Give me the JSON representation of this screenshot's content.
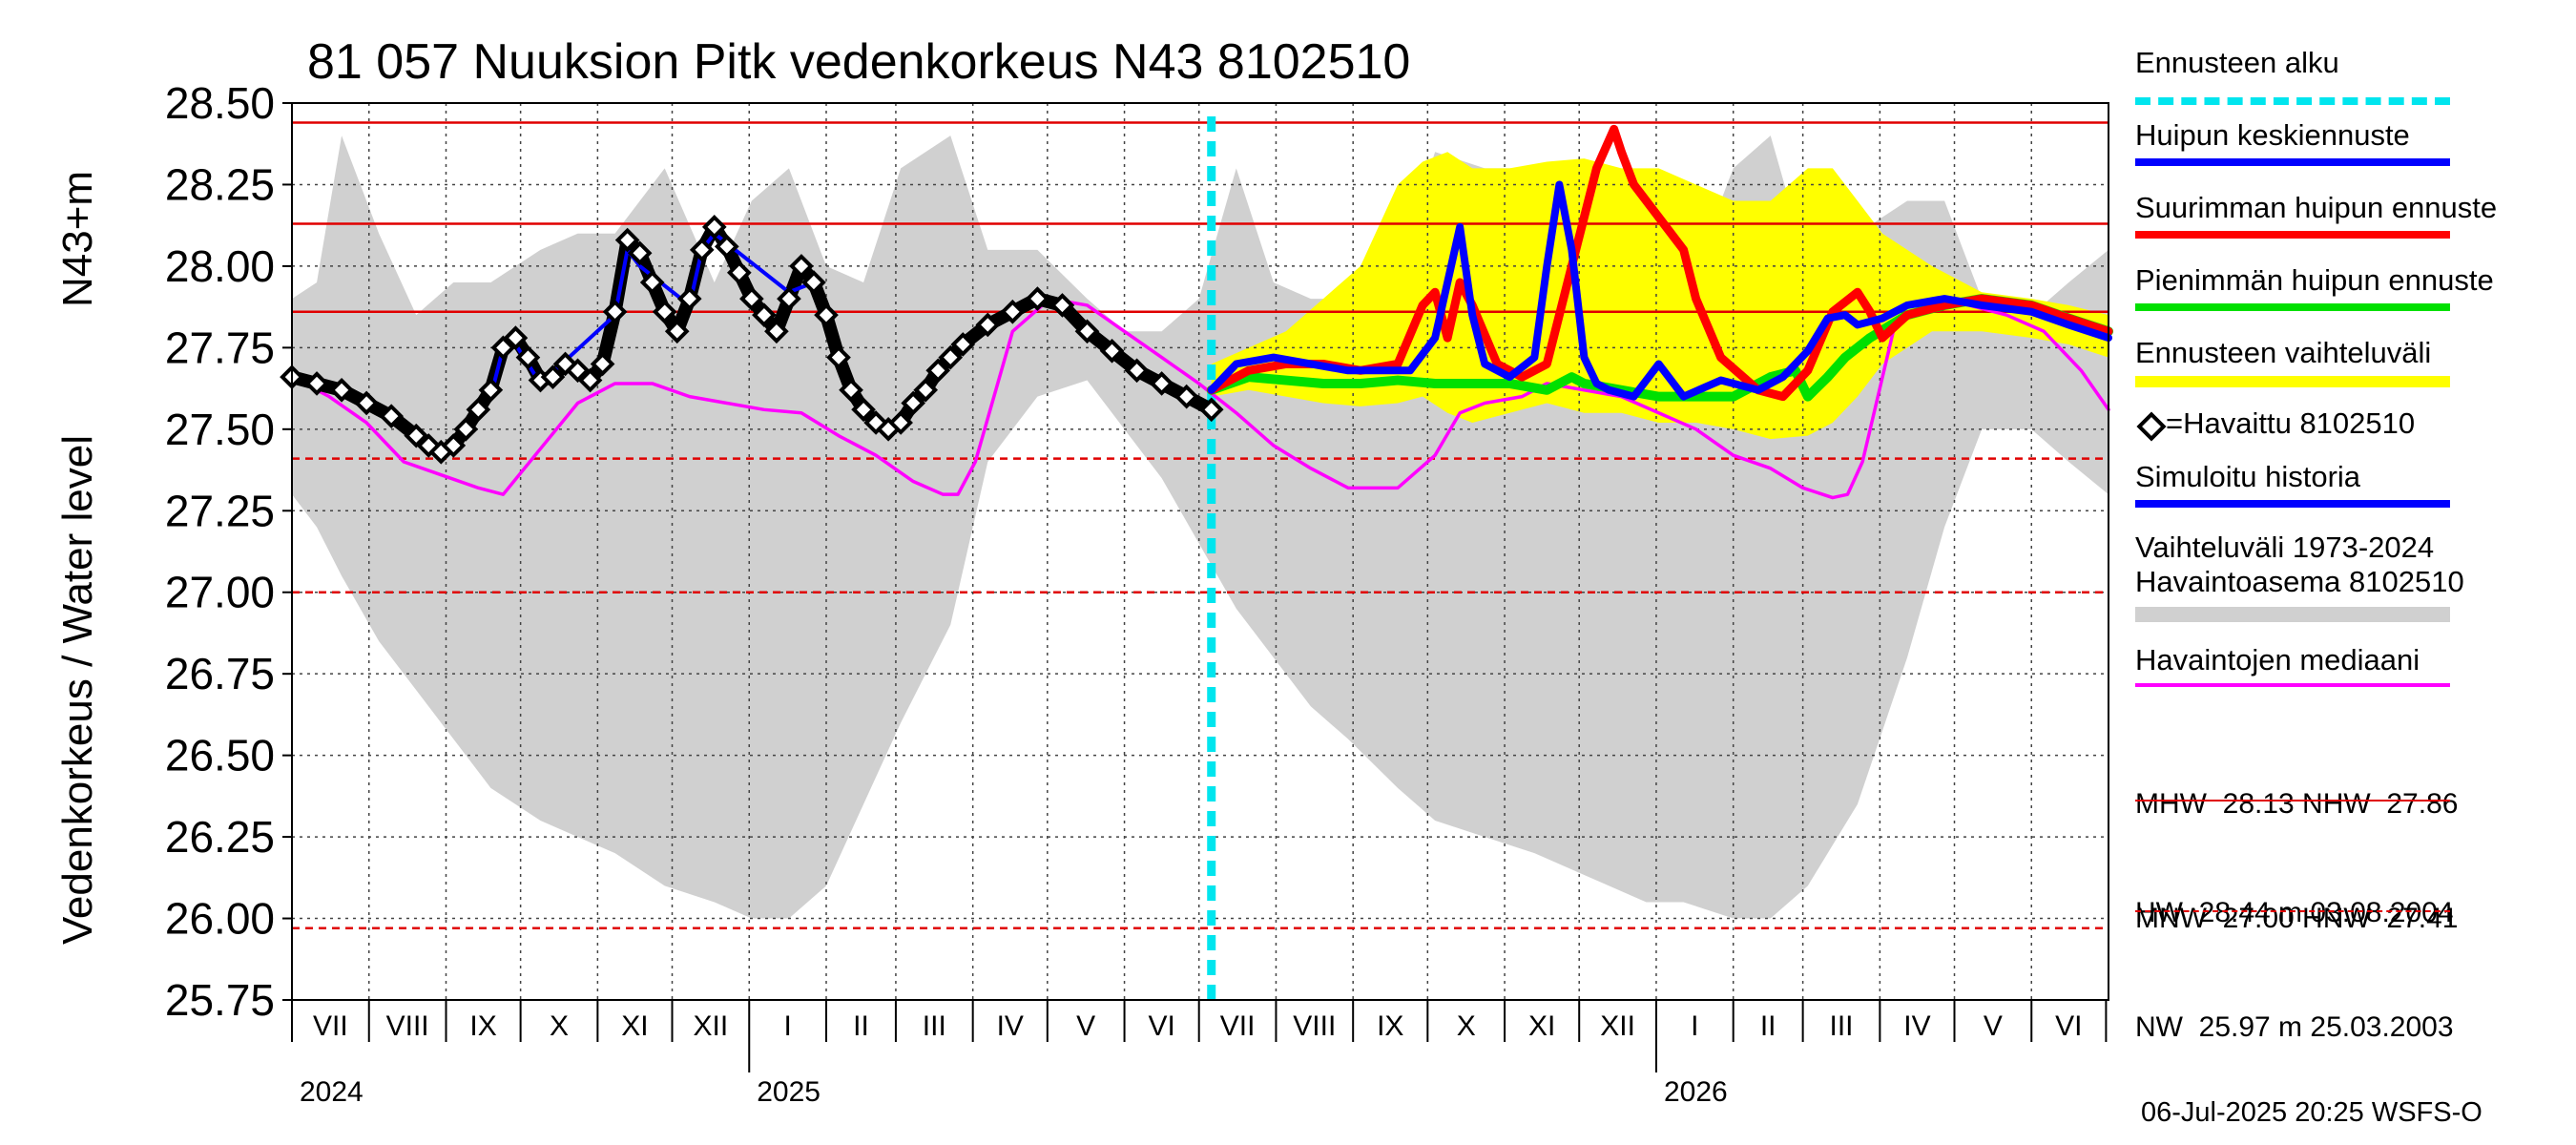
{
  "chart_data": {
    "type": "line",
    "title": "81 057 Nuuksion Pitk vedenkorkeus N43 8102510",
    "ylabel_main": "Vedenkorkeus / Water level",
    "ylabel_unit": "N43+m",
    "ylim": [
      25.75,
      28.5
    ],
    "yticks": [
      "28.50",
      "28.25",
      "28.00",
      "27.75",
      "27.50",
      "27.25",
      "27.00",
      "26.75",
      "26.50",
      "26.25",
      "26.00",
      "25.75"
    ],
    "xrange_days": [
      0,
      731
    ],
    "month_labels": [
      "VII",
      "VIII",
      "IX",
      "X",
      "XI",
      "XII",
      "I",
      "II",
      "III",
      "IV",
      "V",
      "VI",
      "VII",
      "VIII",
      "IX",
      "X",
      "XI",
      "XII",
      "I",
      "II",
      "III",
      "IV",
      "V",
      "VI"
    ],
    "year_labels": [
      "2024",
      "2025",
      "2026"
    ],
    "forecast_start_day": 370,
    "reference_lines": [
      {
        "name": "HW",
        "value": 28.44,
        "color": "#e00000",
        "style": "solid"
      },
      {
        "name": "MHW",
        "value": 28.13,
        "color": "#e00000",
        "style": "solid"
      },
      {
        "name": "NHW",
        "value": 27.86,
        "color": "#e00000",
        "style": "solid"
      },
      {
        "name": "HNW",
        "value": 27.41,
        "color": "#e00000",
        "style": "dashed"
      },
      {
        "name": "MNW",
        "value": 27.0,
        "color": "#e00000",
        "style": "dashed"
      },
      {
        "name": "NW",
        "value": 25.97,
        "color": "#e00000",
        "style": "dashed"
      }
    ],
    "historical_band": {
      "x": [
        0,
        10,
        20,
        35,
        50,
        65,
        80,
        100,
        115,
        130,
        150,
        170,
        185,
        200,
        215,
        230,
        245,
        265,
        280,
        300,
        320,
        335,
        350,
        365,
        380,
        395,
        410,
        425,
        445,
        460,
        480,
        500,
        515,
        530,
        545,
        560,
        580,
        595,
        610,
        630,
        650,
        665,
        680,
        700,
        715,
        731
      ],
      "upper": [
        27.9,
        27.95,
        28.4,
        28.1,
        27.85,
        27.95,
        27.95,
        28.05,
        28.1,
        28.1,
        28.3,
        27.95,
        28.2,
        28.3,
        28.0,
        27.95,
        28.3,
        28.4,
        28.05,
        28.05,
        27.9,
        27.8,
        27.8,
        27.9,
        28.3,
        27.95,
        27.9,
        27.9,
        28.0,
        28.35,
        28.3,
        28.3,
        28.3,
        28.25,
        28.05,
        27.9,
        28.3,
        28.4,
        28.0,
        28.1,
        28.2,
        28.2,
        27.9,
        27.85,
        27.95,
        28.05
      ],
      "lower": [
        27.3,
        27.2,
        27.05,
        26.85,
        26.7,
        26.55,
        26.4,
        26.3,
        26.25,
        26.2,
        26.1,
        26.05,
        26.0,
        26.0,
        26.1,
        26.35,
        26.6,
        26.9,
        27.4,
        27.6,
        27.65,
        27.5,
        27.35,
        27.15,
        26.95,
        26.8,
        26.65,
        26.55,
        26.4,
        26.3,
        26.25,
        26.2,
        26.15,
        26.1,
        26.05,
        26.05,
        26.0,
        26.0,
        26.1,
        26.35,
        26.8,
        27.2,
        27.5,
        27.5,
        27.4,
        27.3
      ]
    },
    "forecast_band": {
      "x": [
        370,
        385,
        400,
        415,
        430,
        445,
        455,
        465,
        475,
        490,
        505,
        520,
        535,
        550,
        565,
        580,
        595,
        610,
        620,
        630,
        640,
        660,
        680,
        700,
        715,
        731
      ],
      "upper": [
        27.7,
        27.75,
        27.8,
        27.9,
        28.0,
        28.25,
        28.32,
        28.35,
        28.3,
        28.3,
        28.32,
        28.33,
        28.3,
        28.3,
        28.25,
        28.2,
        28.2,
        28.3,
        28.3,
        28.2,
        28.1,
        28.0,
        27.92,
        27.9,
        27.88,
        27.85
      ],
      "lower": [
        27.6,
        27.62,
        27.6,
        27.58,
        27.57,
        27.58,
        27.6,
        27.55,
        27.52,
        27.55,
        27.58,
        27.55,
        27.55,
        27.52,
        27.52,
        27.5,
        27.47,
        27.48,
        27.52,
        27.6,
        27.7,
        27.8,
        27.8,
        27.78,
        27.76,
        27.72
      ]
    },
    "series": [
      {
        "name": "Havaittu 8102510",
        "color": "#000000",
        "marker": "diamond",
        "x": [
          0,
          10,
          20,
          30,
          40,
          50,
          55,
          60,
          65,
          70,
          75,
          80,
          85,
          90,
          95,
          100,
          105,
          110,
          115,
          120,
          125,
          130,
          135,
          140,
          145,
          150,
          155,
          160,
          165,
          170,
          175,
          180,
          185,
          190,
          195,
          200,
          205,
          210,
          215,
          220,
          225,
          230,
          235,
          240,
          245,
          250,
          255,
          260,
          265,
          270,
          280,
          290,
          300,
          310,
          320,
          330,
          340,
          350,
          360,
          370
        ],
        "y": [
          27.66,
          27.64,
          27.62,
          27.58,
          27.54,
          27.48,
          27.45,
          27.43,
          27.45,
          27.5,
          27.56,
          27.62,
          27.75,
          27.78,
          27.72,
          27.65,
          27.66,
          27.7,
          27.68,
          27.65,
          27.7,
          27.86,
          28.08,
          28.04,
          27.95,
          27.86,
          27.8,
          27.9,
          28.05,
          28.12,
          28.06,
          27.98,
          27.9,
          27.85,
          27.8,
          27.9,
          28.0,
          27.95,
          27.85,
          27.72,
          27.62,
          27.56,
          27.52,
          27.5,
          27.52,
          27.58,
          27.62,
          27.68,
          27.72,
          27.76,
          27.82,
          27.86,
          27.9,
          27.88,
          27.8,
          27.74,
          27.68,
          27.64,
          27.6,
          27.56
        ]
      },
      {
        "name": "Simuloitu historia",
        "color": "#0000ff",
        "x": [
          80,
          85,
          90,
          95,
          100,
          130,
          135,
          140,
          160,
          165,
          170,
          200,
          210
        ],
        "y": [
          27.6,
          27.75,
          27.76,
          27.7,
          27.64,
          27.85,
          28.05,
          28.0,
          27.88,
          28.05,
          28.1,
          27.92,
          27.95
        ]
      },
      {
        "name": "Havaintojen mediaani",
        "color": "#ff00ff",
        "x": [
          0,
          15,
          30,
          45,
          60,
          75,
          85,
          100,
          115,
          130,
          145,
          160,
          175,
          190,
          205,
          220,
          235,
          250,
          262,
          268,
          275,
          290,
          305,
          320,
          335,
          350,
          365,
          380,
          395,
          410,
          425,
          445,
          460,
          470,
          480,
          495,
          505,
          520,
          535,
          550,
          565,
          580,
          595,
          608,
          620,
          626,
          632,
          645,
          660,
          675,
          690,
          705,
          720,
          731
        ],
        "y": [
          27.66,
          27.6,
          27.52,
          27.4,
          27.36,
          27.32,
          27.3,
          27.44,
          27.58,
          27.64,
          27.64,
          27.6,
          27.58,
          27.56,
          27.55,
          27.48,
          27.42,
          27.34,
          27.3,
          27.3,
          27.4,
          27.8,
          27.9,
          27.88,
          27.8,
          27.72,
          27.64,
          27.55,
          27.45,
          27.38,
          27.32,
          27.32,
          27.42,
          27.55,
          27.58,
          27.6,
          27.64,
          27.62,
          27.6,
          27.55,
          27.5,
          27.42,
          27.38,
          27.32,
          27.29,
          27.3,
          27.4,
          27.82,
          27.9,
          27.88,
          27.85,
          27.8,
          27.68,
          27.56
        ]
      },
      {
        "name": "Pienimmän huipun ennuste",
        "color": "#00e000",
        "x": [
          370,
          385,
          400,
          415,
          430,
          445,
          460,
          475,
          490,
          505,
          515,
          520,
          535,
          550,
          565,
          580,
          595,
          605,
          610,
          618,
          625,
          635,
          650,
          665,
          680,
          700,
          715,
          731
        ],
        "y": [
          27.62,
          27.66,
          27.65,
          27.64,
          27.64,
          27.65,
          27.64,
          27.64,
          27.64,
          27.62,
          27.66,
          27.64,
          27.62,
          27.6,
          27.6,
          27.6,
          27.66,
          27.68,
          27.6,
          27.66,
          27.72,
          27.78,
          27.85,
          27.88,
          27.9,
          27.88,
          27.84,
          27.8
        ]
      },
      {
        "name": "Suurimman huipun ennuste",
        "color": "#ff0000",
        "x": [
          370,
          385,
          400,
          415,
          430,
          445,
          455,
          460,
          465,
          470,
          475,
          485,
          495,
          505,
          515,
          525,
          532,
          535,
          540,
          550,
          560,
          565,
          575,
          590,
          600,
          610,
          620,
          630,
          635,
          640,
          650,
          665,
          680,
          700,
          715,
          731
        ],
        "y": [
          27.62,
          27.68,
          27.7,
          27.7,
          27.68,
          27.7,
          27.88,
          27.92,
          27.78,
          27.95,
          27.88,
          27.7,
          27.66,
          27.7,
          28.0,
          28.3,
          28.42,
          28.35,
          28.25,
          28.15,
          28.05,
          27.9,
          27.72,
          27.62,
          27.6,
          27.68,
          27.86,
          27.92,
          27.86,
          27.78,
          27.85,
          27.88,
          27.9,
          27.88,
          27.84,
          27.8
        ]
      },
      {
        "name": "Huipun keskiennuste",
        "color": "#0000ff",
        "x": [
          370,
          380,
          395,
          410,
          425,
          440,
          450,
          460,
          470,
          475,
          480,
          490,
          500,
          505,
          510,
          515,
          520,
          525,
          530,
          540,
          550,
          560,
          575,
          590,
          600,
          610,
          618,
          625,
          630,
          640,
          650,
          665,
          680,
          700,
          715,
          731
        ],
        "y": [
          27.62,
          27.7,
          27.72,
          27.7,
          27.68,
          27.68,
          27.68,
          27.78,
          28.12,
          27.85,
          27.7,
          27.66,
          27.72,
          28.0,
          28.25,
          28.05,
          27.72,
          27.64,
          27.62,
          27.6,
          27.7,
          27.6,
          27.65,
          27.62,
          27.66,
          27.74,
          27.84,
          27.85,
          27.82,
          27.84,
          27.88,
          27.9,
          27.88,
          27.86,
          27.82,
          27.78
        ]
      }
    ]
  },
  "legend": {
    "forecast_start": "Ennusteen alku",
    "peak_mean": "Huipun keskiennuste",
    "max_peak": "Suurimman huipun ennuste",
    "min_peak": "Pienimmän huipun ennuste",
    "forecast_range": "Ennusteen vaihteluväli",
    "observed": "=Havaittu 8102510",
    "simulated": "Simuloitu historia",
    "hist_range_1": "Vaihteluväli 1973-2024",
    "hist_range_2": " Havaintoasema 8102510",
    "median": "Havaintojen mediaani",
    "stats_high_1": "MHW  28.13 NHW  27.86",
    "stats_high_2": "HW  28.44 m 03.08.2004",
    "stats_low_1": "MNW  27.00 HNW  27.41",
    "stats_low_2": "NW  25.97 m 25.03.2003"
  },
  "colors": {
    "cyan": "#00e5ee",
    "yellow": "#ffff00",
    "grey_band": "#d0d0d0",
    "red": "#e00000",
    "blue": "#0000ff",
    "green": "#00e000",
    "magenta": "#ff00ff"
  },
  "footer": {
    "stamp": "06-Jul-2025 20:25 WSFS-O"
  }
}
